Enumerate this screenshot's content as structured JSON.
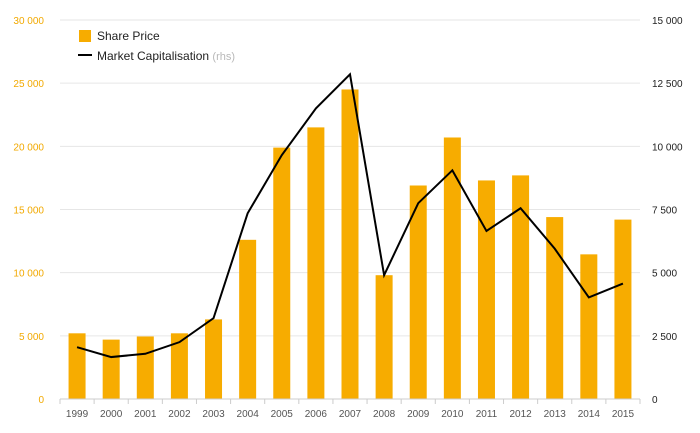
{
  "chart_data": {
    "type": "bar+line",
    "categories": [
      "1999",
      "2000",
      "2001",
      "2002",
      "2003",
      "2004",
      "2005",
      "2006",
      "2007",
      "2008",
      "2009",
      "2010",
      "2011",
      "2012",
      "2013",
      "2014",
      "2015"
    ],
    "series": [
      {
        "name": "Share Price",
        "type": "bar",
        "axis": "left",
        "color": "#f7ac00",
        "values": [
          5200,
          4700,
          4950,
          5200,
          6300,
          12600,
          19900,
          21500,
          24500,
          9800,
          16900,
          20700,
          17300,
          17700,
          14400,
          11450,
          14200
        ]
      },
      {
        "name": "Market Capitalisation",
        "type": "line",
        "axis": "right",
        "color": "#000000",
        "values": [
          2050,
          1660,
          1790,
          2250,
          3200,
          7350,
          9650,
          11500,
          12850,
          4900,
          7750,
          9050,
          6650,
          7550,
          5950,
          4020,
          4570
        ]
      }
    ],
    "legend": {
      "bar_label": "Share Price",
      "line_label": "Market Capitalisation",
      "line_suffix": "(rhs)",
      "placement": "top-left"
    },
    "y_left": {
      "range": [
        0,
        30000
      ],
      "ticks": [
        0,
        5000,
        10000,
        15000,
        20000,
        25000,
        30000
      ],
      "tick_labels": [
        "0",
        "5 000",
        "10 000",
        "15 000",
        "20 000",
        "25 000",
        "30 000"
      ],
      "color": "#f2a900"
    },
    "y_right": {
      "range": [
        0,
        15000
      ],
      "ticks": [
        0,
        2500,
        5000,
        7500,
        10000,
        12500,
        15000
      ],
      "tick_labels": [
        "0",
        "2 500",
        "5 000",
        "7 500",
        "10 000",
        "12 500",
        "15 000"
      ],
      "color": "#222222"
    },
    "grid": true
  }
}
